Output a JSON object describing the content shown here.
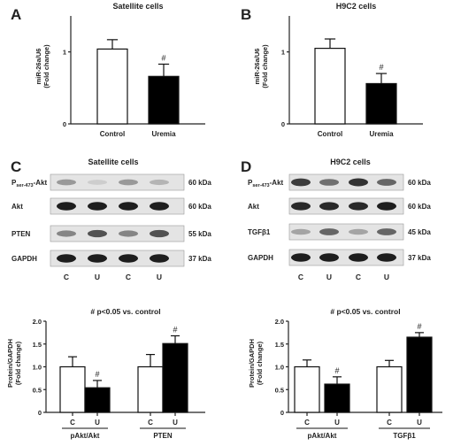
{
  "chart_data": [
    {
      "panel": "A",
      "type": "bar",
      "title": "Satellite cells",
      "ylabel": "miR-26a/U6\n(Fold change)",
      "ylim": [
        0,
        1.5
      ],
      "yticks": [
        "0",
        "1"
      ],
      "categories": [
        "Control",
        "Uremia"
      ],
      "values": [
        1.04,
        0.66
      ],
      "errors": [
        0.13,
        0.17
      ],
      "fills": [
        "#ffffff",
        "#000000"
      ],
      "annotations": [
        "",
        "#"
      ]
    },
    {
      "panel": "B",
      "type": "bar",
      "title": "H9C2 cells",
      "ylabel": "miR-26a/U6\n(Fold change)",
      "ylim": [
        0,
        1.5
      ],
      "yticks": [
        "0",
        "1"
      ],
      "categories": [
        "Control",
        "Uremia"
      ],
      "values": [
        1.05,
        0.56
      ],
      "errors": [
        0.13,
        0.14
      ],
      "fills": [
        "#ffffff",
        "#000000"
      ],
      "annotations": [
        "",
        "#"
      ]
    },
    {
      "panel": "C",
      "type": "bar",
      "note": "# p<0.05 vs. control",
      "ylabel": "Protein/GAPDH\n(Fold change)",
      "ylim": [
        0,
        2.0
      ],
      "yticks": [
        "0",
        "0.5",
        "1.0",
        "1.5",
        "2.0"
      ],
      "bar_labels": [
        "C",
        "U",
        "C",
        "U"
      ],
      "groups": [
        "pAkt/Akt",
        "PTEN"
      ],
      "values": [
        1.0,
        0.54,
        1.0,
        1.51
      ],
      "errors": [
        0.22,
        0.16,
        0.27,
        0.17
      ],
      "fills": [
        "#ffffff",
        "#000000",
        "#ffffff",
        "#000000"
      ],
      "annotations": [
        "",
        "#",
        "",
        "#"
      ]
    },
    {
      "panel": "D",
      "type": "bar",
      "note": "# p<0.05 vs. control",
      "ylabel": "Protein/GAPDH\n(Fold change)",
      "ylim": [
        0,
        2.0
      ],
      "yticks": [
        "0",
        "0.5",
        "1.0",
        "1.5",
        "2.0"
      ],
      "bar_labels": [
        "C",
        "U",
        "C",
        "U"
      ],
      "groups": [
        "pAkt/Akt",
        "TGFβ1"
      ],
      "values": [
        1.0,
        0.62,
        1.0,
        1.65
      ],
      "errors": [
        0.15,
        0.16,
        0.14,
        0.1
      ],
      "fills": [
        "#ffffff",
        "#000000",
        "#ffffff",
        "#000000"
      ],
      "annotations": [
        "",
        "#",
        "",
        "#"
      ]
    }
  ],
  "blots": [
    {
      "panel": "C",
      "title": "Satellite cells",
      "lanes": [
        "C",
        "U",
        "C",
        "U"
      ],
      "rows": [
        {
          "protein": "P",
          "sub": "ser-473",
          "suffix": "-Akt",
          "kda": "60 kDa",
          "intensity": [
            0.35,
            0.1,
            0.35,
            0.22
          ]
        },
        {
          "protein": "Akt",
          "sub": "",
          "suffix": "",
          "kda": "60 kDa",
          "intensity": [
            0.95,
            0.95,
            0.95,
            0.95
          ]
        },
        {
          "protein": "PTEN",
          "sub": "",
          "suffix": "",
          "kda": "55 kDa",
          "intensity": [
            0.45,
            0.7,
            0.45,
            0.7
          ]
        },
        {
          "protein": "GAPDH",
          "sub": "",
          "suffix": "",
          "kda": "37 kDa",
          "intensity": [
            0.95,
            0.95,
            0.95,
            0.95
          ]
        }
      ]
    },
    {
      "panel": "D",
      "title": "H9C2 cells",
      "lanes": [
        "C",
        "U",
        "C",
        "U"
      ],
      "rows": [
        {
          "protein": "P",
          "sub": "ser-473",
          "suffix": "-Akt",
          "kda": "60 kDa",
          "intensity": [
            0.8,
            0.55,
            0.85,
            0.6
          ]
        },
        {
          "protein": "Akt",
          "sub": "",
          "suffix": "",
          "kda": "60 kDa",
          "intensity": [
            0.9,
            0.9,
            0.9,
            0.95
          ]
        },
        {
          "protein": "TGFβ1",
          "sub": "",
          "suffix": "",
          "kda": "45 kDa",
          "intensity": [
            0.3,
            0.6,
            0.3,
            0.6
          ]
        },
        {
          "protein": "GAPDH",
          "sub": "",
          "suffix": "",
          "kda": "37 kDa",
          "intensity": [
            0.95,
            0.95,
            0.95,
            0.95
          ]
        }
      ]
    }
  ]
}
